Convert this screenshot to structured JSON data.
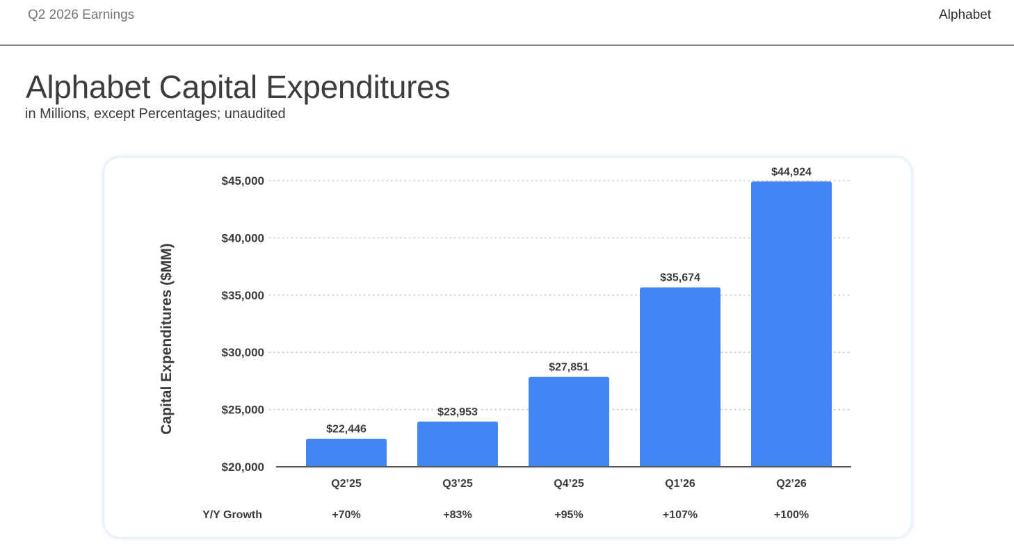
{
  "header": {
    "left_text": "Q2 2026 Earnings",
    "right_text": "Alphabet"
  },
  "page": {
    "title": "Alphabet Capital Expenditures",
    "subtitle": "in Millions, except Percentages; unaudited"
  },
  "colors": {
    "bar": "#4285f4",
    "text": "#3c3c3c",
    "grid": "#c8c8c8",
    "axis": "#555555"
  },
  "chart_data": {
    "type": "bar",
    "ylabel": "Capital Expenditures ($MM)",
    "xlabel": "",
    "ylim": [
      20000,
      45000
    ],
    "y_ticks": [
      20000,
      25000,
      30000,
      35000,
      40000,
      45000
    ],
    "y_tick_labels": [
      "$20,000",
      "$25,000",
      "$30,000",
      "$35,000",
      "$40,000",
      "$45,000"
    ],
    "grid": "horizontal dotted",
    "categories": [
      "Q2’25",
      "Q3’25",
      "Q4’25",
      "Q1’26",
      "Q2’26"
    ],
    "values": [
      22446,
      23953,
      27851,
      35674,
      44924
    ],
    "value_labels": [
      "$22,446",
      "$23,953",
      "$27,851",
      "$35,674",
      "$44,924"
    ],
    "growth_row_label": "Y/Y Growth",
    "growth": [
      "+70%",
      "+83%",
      "+95%",
      "+107%",
      "+100%"
    ]
  }
}
